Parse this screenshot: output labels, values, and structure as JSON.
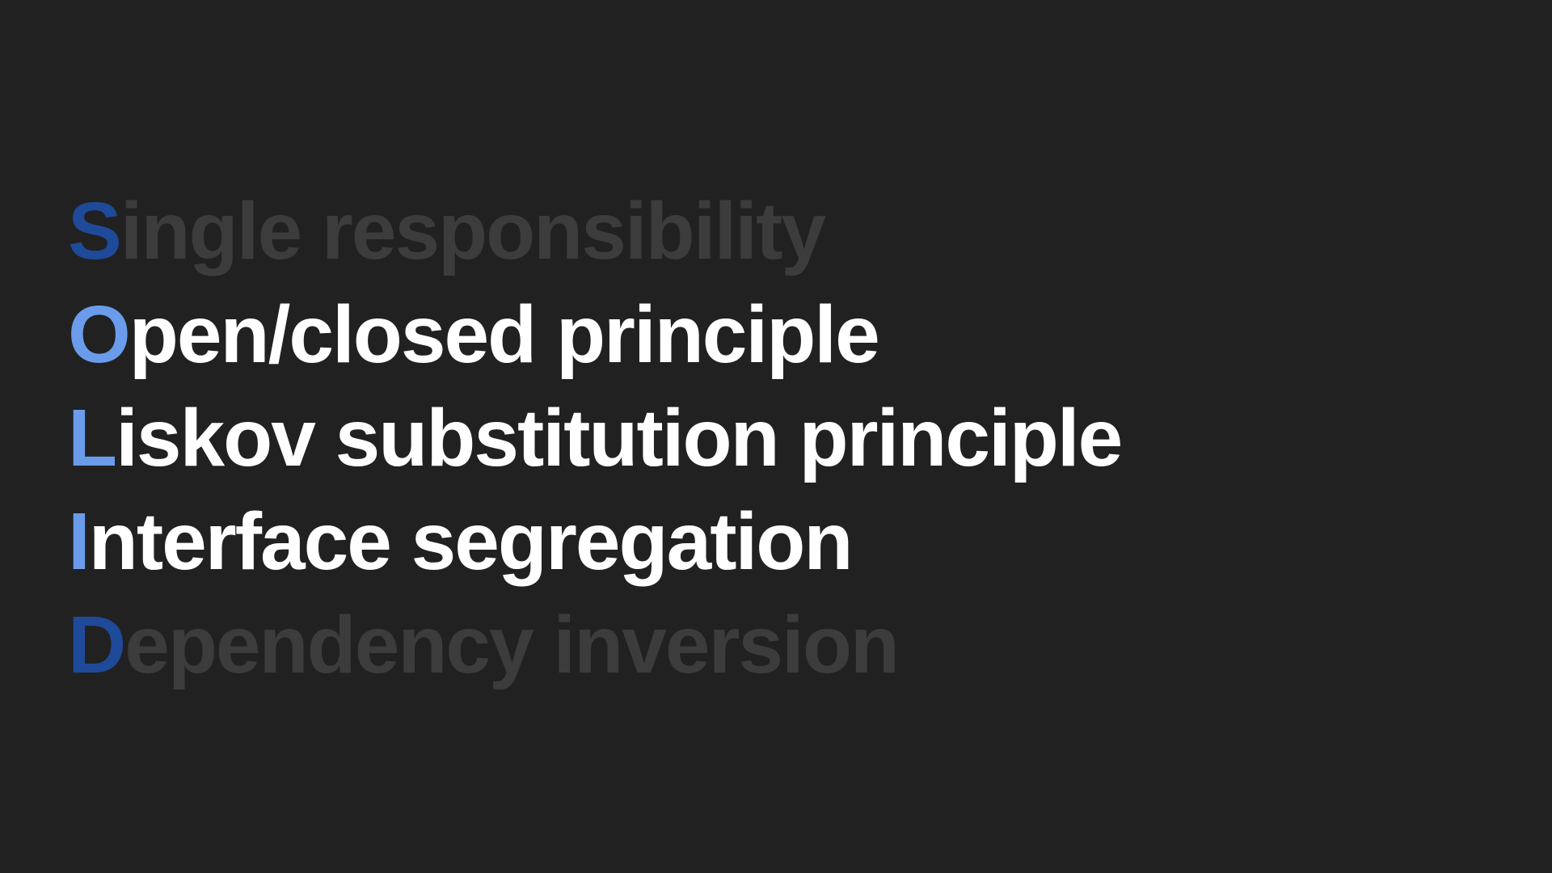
{
  "colors": {
    "background": "#212121",
    "dim_text": "#3c3c3c",
    "dim_initial": "#1f4a99",
    "active_text": "#ffffff",
    "active_initial": "#6a9ceb"
  },
  "principles": [
    {
      "initial": "S",
      "rest": "ingle responsibility",
      "state": "dim"
    },
    {
      "initial": "O",
      "rest": "pen/closed principle",
      "state": "active"
    },
    {
      "initial": "L",
      "rest": "iskov substitution principle",
      "state": "active"
    },
    {
      "initial": "I",
      "rest": "nterface segregation",
      "state": "active"
    },
    {
      "initial": "D",
      "rest": "ependency inversion",
      "state": "dim"
    }
  ]
}
